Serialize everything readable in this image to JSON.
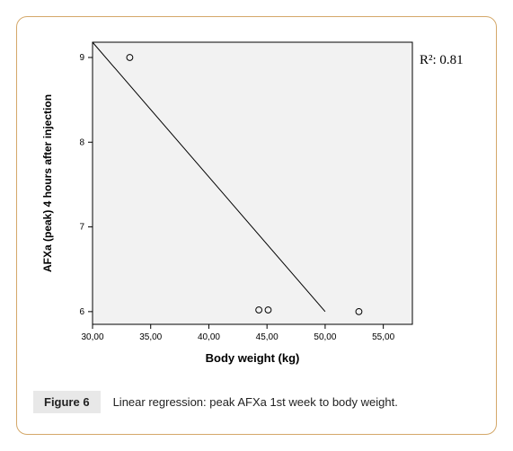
{
  "chart": {
    "type": "scatter+line",
    "plot_bg": "#f2f2f2",
    "frame_bg": "#ffffff",
    "axis_color": "#000000",
    "tick_color": "#000000",
    "line_color": "#000000",
    "marker_stroke": "#000000",
    "marker_fill": "none",
    "xlabel": "Body weight (kg)",
    "ylabel": "AFXa (peak) 4 hours after injection",
    "xlabel_fontsize": 13,
    "ylabel_fontsize": 12,
    "tick_fontsize": 10,
    "label_fontweight": "bold",
    "xlim": [
      30,
      57.5
    ],
    "ylim": [
      5.85,
      9.18
    ],
    "xticks": [
      30,
      35,
      40,
      45,
      50,
      55
    ],
    "xtick_labels": [
      "30,00",
      "35,00",
      "40,00",
      "45,00",
      "50,00",
      "55,00"
    ],
    "yticks": [
      6,
      7,
      8,
      9
    ],
    "ytick_labels": [
      "6",
      "7",
      "8",
      "9"
    ],
    "line": {
      "x1": 30,
      "y1": 9.18,
      "x2": 50,
      "y2": 6.0
    },
    "points": [
      {
        "x": 33.2,
        "y": 9.0
      },
      {
        "x": 44.3,
        "y": 6.02
      },
      {
        "x": 45.1,
        "y": 6.02
      },
      {
        "x": 52.9,
        "y": 6.0
      }
    ],
    "r2_label": "R²: 0.81",
    "r2_fontsize": 15
  },
  "caption": {
    "label": "Figure 6",
    "text": "Linear regression: peak AFXa 1st week to body weight."
  }
}
